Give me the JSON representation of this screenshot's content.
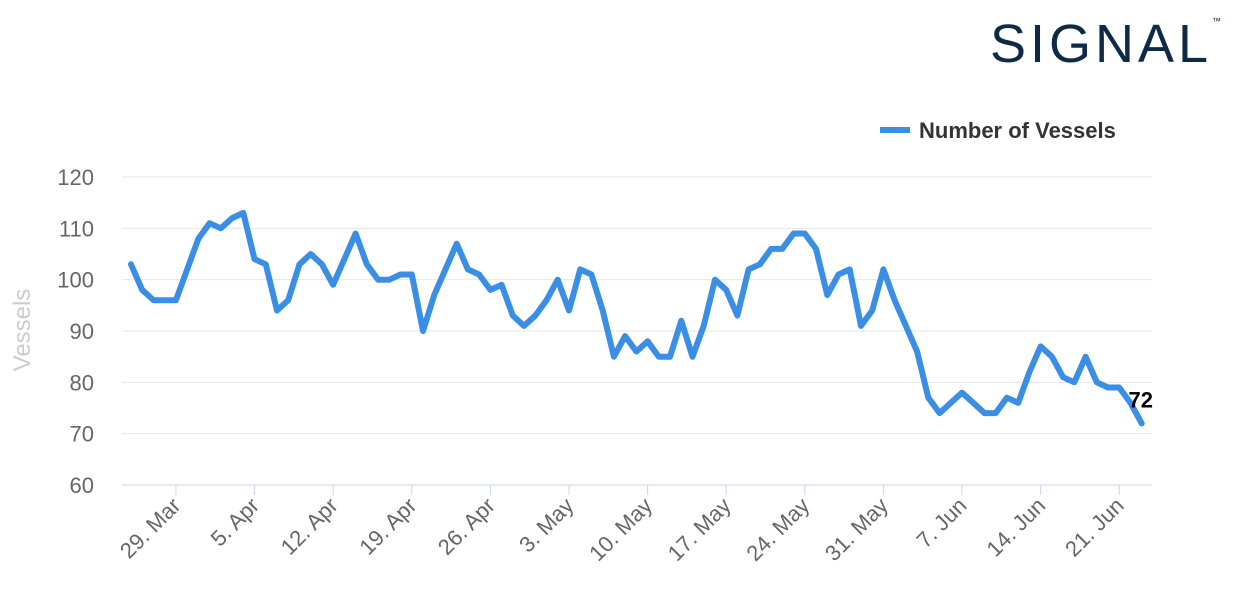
{
  "logo": {
    "text": "SIGNAL",
    "tm": "™",
    "color": "#0e2a47"
  },
  "chart_data": {
    "type": "line",
    "ylabel": "Vessels",
    "xlabel": "",
    "ylim": [
      60,
      120
    ],
    "yticks": [
      60,
      70,
      80,
      90,
      100,
      110,
      120
    ],
    "xticks": [
      "29. Mar",
      "5. Apr",
      "12. Apr",
      "19. Apr",
      "26. Apr",
      "3. May",
      "10. May",
      "17. May",
      "24. May",
      "31. May",
      "7. Jun",
      "14. Jun",
      "21. Jun"
    ],
    "x_start": "2021-03-25",
    "legend": {
      "position": "top-right"
    },
    "grid": true,
    "series": [
      {
        "name": "Number of Vessels",
        "color": "#3a8ee6",
        "last_value_label": "72",
        "values": [
          103,
          98,
          96,
          96,
          96,
          102,
          108,
          111,
          110,
          112,
          113,
          104,
          103,
          94,
          96,
          103,
          105,
          103,
          99,
          104,
          109,
          103,
          100,
          100,
          101,
          101,
          90,
          97,
          102,
          107,
          102,
          101,
          98,
          99,
          93,
          91,
          93,
          96,
          100,
          94,
          102,
          101,
          94,
          85,
          89,
          86,
          88,
          85,
          85,
          92,
          85,
          91,
          100,
          98,
          93,
          102,
          103,
          106,
          106,
          109,
          109,
          106,
          97,
          101,
          102,
          91,
          94,
          102,
          96,
          91,
          86,
          77,
          74,
          76,
          78,
          76,
          74,
          74,
          77,
          76,
          82,
          87,
          85,
          81,
          80,
          85,
          80,
          79,
          79,
          76,
          72
        ]
      }
    ]
  }
}
